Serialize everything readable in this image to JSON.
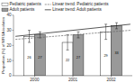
{
  "chart_data": {
    "type": "bar",
    "categories": [
      "2000",
      "2001",
      "2002"
    ],
    "y_label": "Proportion (%) of MRSA isolates",
    "ylim": [
      0,
      40
    ],
    "yticks": [
      0,
      10,
      20,
      30,
      40
    ],
    "grid": false,
    "legend": "upper left",
    "data_labels": true,
    "series": [
      {
        "name": "Pediatric patients",
        "type": "bar",
        "color": "#ffffff",
        "values": [
          26,
          22,
          29
        ],
        "errors_low": [
          4.0,
          5.0,
          5.0
        ],
        "errors_high": [
          4.0,
          5.0,
          5.0
        ]
      },
      {
        "name": "Adult patients",
        "type": "bar",
        "color": "#999999",
        "values": [
          27,
          27,
          33
        ],
        "errors_low": [
          2.0,
          2.0,
          2.0
        ],
        "errors_high": [
          2.0,
          2.0,
          2.0
        ]
      },
      {
        "name": "Linear trend: Pediatric patients",
        "type": "line",
        "line_style": "dashed",
        "color": "#666666",
        "start": 24,
        "end": 30
      },
      {
        "name": "Linear trend: Adult patients",
        "type": "line",
        "line_style": "solid",
        "color": "#111111",
        "start": 26,
        "end": 34
      }
    ]
  }
}
